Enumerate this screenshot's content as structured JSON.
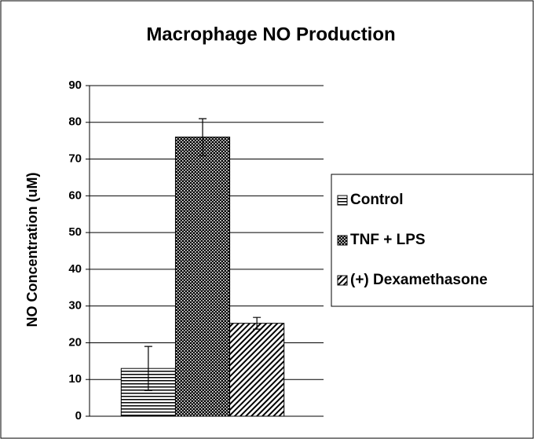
{
  "chart_data": {
    "type": "bar",
    "title": "Macrophage NO Production",
    "y_label": "NO Concentration (uM)",
    "series": [
      {
        "name": "Control",
        "color": "#000000",
        "pattern": "horizontal",
        "values": [
          13
        ],
        "errors": [
          6
        ]
      },
      {
        "name": "TNF + LPS",
        "color": "#000000",
        "pattern": "checker",
        "values": [
          76
        ],
        "errors": [
          5
        ]
      },
      {
        "name": "(+) Dexamethasone",
        "color": "#000000",
        "pattern": "diagonal",
        "values": [
          25.3
        ],
        "errors": [
          1.6
        ]
      }
    ],
    "ylim": [
      0,
      90
    ],
    "yticks": [
      0,
      10,
      20,
      30,
      40,
      50,
      60,
      70,
      80,
      90
    ],
    "grid": true,
    "legend": "right"
  }
}
